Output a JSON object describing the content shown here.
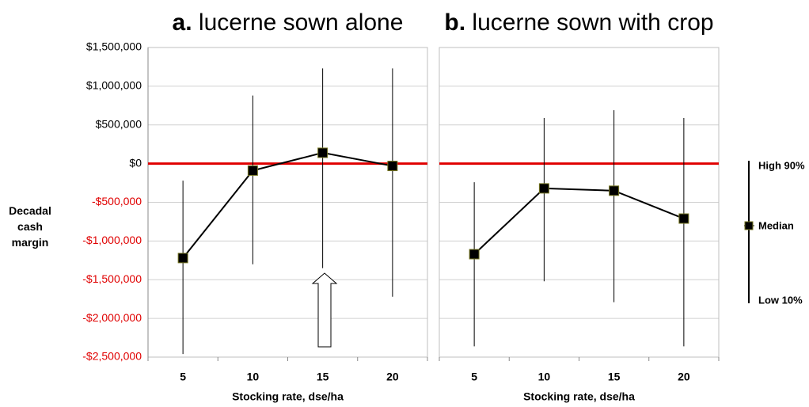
{
  "chart_data": [
    {
      "type": "errorbar-line",
      "title_prefix": "a.",
      "title": "lucerne sown alone",
      "ylabel": "Decadal cash margin",
      "xlabel": "Stocking rate, dse/ha",
      "categories": [
        5,
        10,
        15,
        20
      ],
      "series": [
        {
          "name": "Median",
          "color": "#000000",
          "values": [
            -1220000,
            -90000,
            140000,
            -30000
          ],
          "low": [
            -2460000,
            -1300000,
            -1350000,
            -1720000
          ],
          "high": [
            -220000,
            880000,
            1230000,
            1230000
          ]
        }
      ],
      "ylim": [
        -2500000,
        1500000
      ],
      "yticks": [
        {
          "value": -2500000,
          "label": "-$2,500,000"
        },
        {
          "value": -2000000,
          "label": "-$2,000,000"
        },
        {
          "value": -1500000,
          "label": "-$1,500,000"
        },
        {
          "value": -1000000,
          "label": "-$1,000,000"
        },
        {
          "value": -500000,
          "label": "-$500,000"
        },
        {
          "value": 0,
          "label": "$0"
        },
        {
          "value": 500000,
          "label": "$500,000"
        },
        {
          "value": 1000000,
          "label": "$1,000,000"
        },
        {
          "value": 1500000,
          "label": "$1,500,000"
        }
      ],
      "show_ytick_labels": true,
      "negative_tick_color": "#e00000",
      "reference_line": {
        "value": 0,
        "color": "#e00000"
      },
      "grid": true
    },
    {
      "type": "errorbar-line",
      "title_prefix": "b.",
      "title": "lucerne sown with crop",
      "xlabel": "Stocking rate, dse/ha",
      "categories": [
        5,
        10,
        15,
        20
      ],
      "series": [
        {
          "name": "Median",
          "color": "#000000",
          "values": [
            -1170000,
            -320000,
            -350000,
            -710000
          ],
          "low": [
            -2360000,
            -1520000,
            -1790000,
            -2360000
          ],
          "high": [
            -240000,
            590000,
            690000,
            590000
          ]
        }
      ],
      "ylim": [
        -2500000,
        1500000
      ],
      "yticks": [
        -2500000,
        -2000000,
        -1500000,
        -1000000,
        -500000,
        0,
        500000,
        1000000,
        1500000
      ],
      "show_ytick_labels": false,
      "reference_line": {
        "value": 0,
        "color": "#e00000"
      },
      "grid": true
    }
  ],
  "legend": {
    "high": "High 90%",
    "low": "Low 10%"
  }
}
